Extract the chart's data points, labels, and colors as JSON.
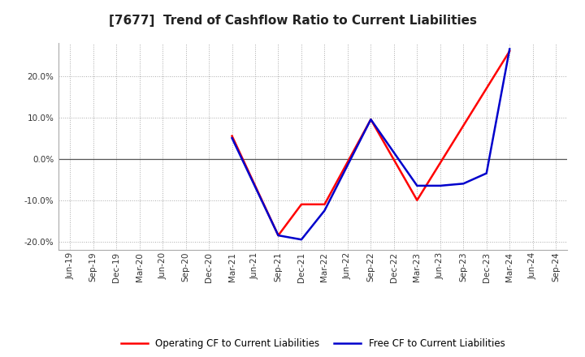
{
  "title": "[7677]  Trend of Cashflow Ratio to Current Liabilities",
  "x_labels": [
    "Jun-19",
    "Sep-19",
    "Dec-19",
    "Mar-20",
    "Jun-20",
    "Sep-20",
    "Dec-20",
    "Mar-21",
    "Jun-21",
    "Sep-21",
    "Dec-21",
    "Mar-22",
    "Jun-22",
    "Sep-22",
    "Dec-22",
    "Mar-23",
    "Jun-23",
    "Sep-23",
    "Dec-23",
    "Mar-24",
    "Jun-24",
    "Sep-24"
  ],
  "operating_x": [
    7,
    9,
    10,
    11,
    13,
    15,
    19
  ],
  "operating_y": [
    5.5,
    -18.5,
    -11.0,
    -11.0,
    9.5,
    -10.0,
    26.0
  ],
  "free_x": [
    7,
    9,
    10,
    11,
    13,
    15,
    16,
    17,
    18,
    19
  ],
  "free_y": [
    5.0,
    -18.5,
    -19.5,
    -12.5,
    9.5,
    -6.5,
    -6.5,
    -6.0,
    -3.5,
    26.5
  ],
  "ylim": [
    -22,
    28
  ],
  "yticks": [
    -20.0,
    -10.0,
    0.0,
    10.0,
    20.0
  ],
  "operating_color": "#ff0000",
  "free_color": "#0000cc",
  "grid_color": "#aaaaaa",
  "background_color": "#ffffff",
  "plot_bg_color": "#ffffff",
  "legend_op": "Operating CF to Current Liabilities",
  "legend_free": "Free CF to Current Liabilities",
  "title_fontsize": 11,
  "tick_fontsize": 7.5,
  "legend_fontsize": 8.5
}
